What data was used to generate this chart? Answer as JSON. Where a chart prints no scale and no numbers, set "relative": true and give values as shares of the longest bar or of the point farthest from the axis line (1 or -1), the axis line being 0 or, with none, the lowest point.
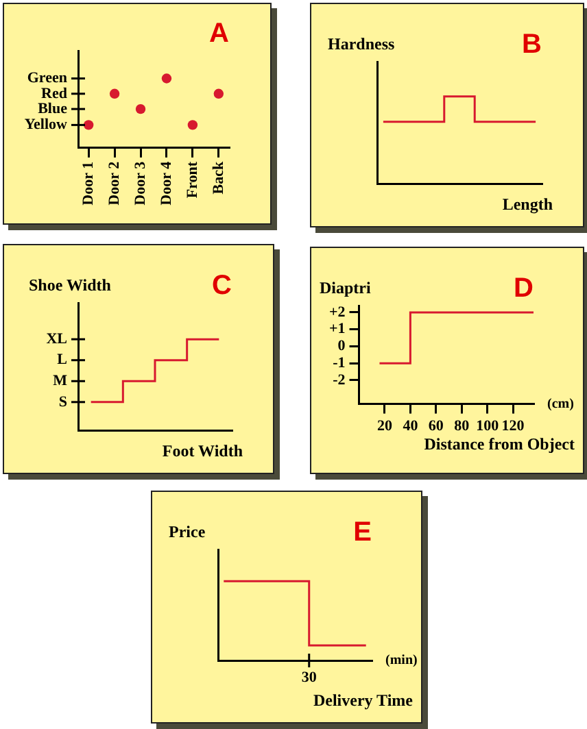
{
  "chart_data": [
    {
      "type": "scatter",
      "title": "A",
      "categories": [
        "Door 1",
        "Door 2",
        "Door 3",
        "Door 4",
        "Front",
        "Back"
      ],
      "values": [
        0.33,
        0.78,
        0.56,
        1,
        0.33,
        0.78
      ],
      "relative": true,
      "annotations": [
        "Green",
        "Red",
        "Blue",
        "Yellow"
      ],
      "color": "#d7192f"
    },
    {
      "type": "step",
      "title": "B",
      "xlabel": "Length",
      "ylabel": "Hardness",
      "relative": true,
      "categories": [
        null,
        null,
        null,
        null,
        null,
        null,
        null,
        null,
        null,
        null,
        null
      ],
      "values": [
        0.71,
        0.71,
        0.71,
        0.71,
        1,
        1,
        0.71,
        0.71,
        0.71,
        0.71,
        0.71
      ],
      "color": "#d7192f"
    },
    {
      "type": "step",
      "title": "C",
      "xlabel": "Foot Width",
      "ylabel": "Shoe Width",
      "categories": [
        null,
        null,
        null,
        null,
        null
      ],
      "values": [
        0.31,
        0.54,
        0.77,
        1,
        1
      ],
      "relative": true,
      "annotations": [
        "XL",
        "L",
        "M",
        "S"
      ],
      "color": "#d7192f"
    },
    {
      "type": "step",
      "title": "D",
      "xlabel": "Distance from Object",
      "ylabel": "Diaptri",
      "annotations": [
        "(cm)"
      ],
      "x": [
        16,
        40,
        136
      ],
      "values": [
        -1,
        2,
        2
      ],
      "xlim": [
        0,
        136
      ],
      "xticks": [
        20,
        40,
        60,
        80,
        100,
        120
      ],
      "ylim": [
        -3.4,
        2.4
      ],
      "yticks": [
        {
          "value": 2,
          "label": "+2"
        },
        {
          "value": 1,
          "label": "+1"
        },
        0,
        -1,
        -2
      ],
      "color": "#d7192f"
    },
    {
      "type": "step",
      "title": "E",
      "xlabel": "Delivery Time",
      "ylabel": "Price",
      "annotations": [
        "(min)",
        "30"
      ],
      "categories": [
        null,
        null,
        null,
        null,
        null,
        null,
        null,
        null,
        null,
        null,
        null
      ],
      "values": [
        1,
        1,
        1,
        1,
        1,
        1,
        0.19,
        0.19,
        0.19,
        0.19,
        0.19
      ],
      "relative": true,
      "color": "#d7192f"
    }
  ]
}
